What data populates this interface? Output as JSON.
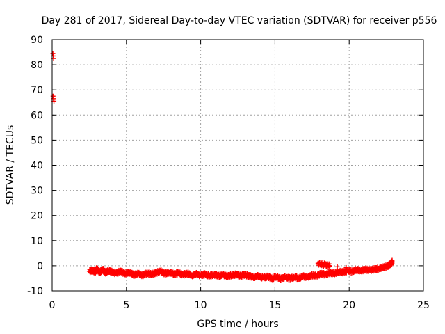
{
  "chart_data": {
    "type": "scatter",
    "title": "Day 281 of 2017, Sidereal Day-to-day VTEC variation (SDTVAR) for receiver p556",
    "xlabel": "GPS time / hours",
    "ylabel": "SDTVAR / TECUs",
    "xlim": [
      0,
      25
    ],
    "ylim": [
      -10,
      90
    ],
    "xticks": [
      0,
      5,
      10,
      15,
      20,
      25
    ],
    "yticks": [
      -10,
      0,
      10,
      20,
      30,
      40,
      50,
      60,
      70,
      80,
      90
    ],
    "grid": true,
    "marker": "+",
    "series": [
      {
        "name": "SDTVAR",
        "color": "#ff0000",
        "points": [
          [
            0.05,
            84.5
          ],
          [
            0.08,
            83.5
          ],
          [
            0.1,
            82.5
          ],
          [
            0.06,
            67.5
          ],
          [
            0.09,
            66.5
          ],
          [
            0.12,
            65.5
          ],
          [
            2.5,
            -2.2
          ],
          [
            2.7,
            -1.8
          ],
          [
            2.9,
            -2.5
          ],
          [
            3.0,
            -1.2
          ],
          [
            3.2,
            -2.6
          ],
          [
            3.4,
            -1.5
          ],
          [
            3.6,
            -2.8
          ],
          [
            3.8,
            -1.9
          ],
          [
            4.0,
            -2.4
          ],
          [
            4.3,
            -3.0
          ],
          [
            4.6,
            -2.2
          ],
          [
            4.9,
            -3.1
          ],
          [
            5.2,
            -2.6
          ],
          [
            5.5,
            -3.6
          ],
          [
            5.8,
            -3.2
          ],
          [
            6.1,
            -3.8
          ],
          [
            6.4,
            -3.0
          ],
          [
            6.7,
            -3.4
          ],
          [
            7.0,
            -2.8
          ],
          [
            7.3,
            -2.2
          ],
          [
            7.6,
            -3.2
          ],
          [
            7.9,
            -2.6
          ],
          [
            8.2,
            -3.4
          ],
          [
            8.5,
            -2.9
          ],
          [
            8.8,
            -3.6
          ],
          [
            9.1,
            -3.1
          ],
          [
            9.4,
            -3.8
          ],
          [
            9.7,
            -3.3
          ],
          [
            10.0,
            -3.9
          ],
          [
            10.3,
            -3.4
          ],
          [
            10.6,
            -4.0
          ],
          [
            10.9,
            -3.5
          ],
          [
            11.2,
            -4.1
          ],
          [
            11.5,
            -3.6
          ],
          [
            11.8,
            -4.2
          ],
          [
            12.1,
            -3.7
          ],
          [
            12.4,
            -3.5
          ],
          [
            12.7,
            -4.0
          ],
          [
            13.0,
            -3.6
          ],
          [
            13.3,
            -4.2
          ],
          [
            13.6,
            -4.5
          ],
          [
            13.9,
            -4.1
          ],
          [
            14.2,
            -4.8
          ],
          [
            14.5,
            -4.3
          ],
          [
            14.8,
            -5.0
          ],
          [
            15.1,
            -4.4
          ],
          [
            15.4,
            -5.2
          ],
          [
            15.7,
            -4.6
          ],
          [
            16.0,
            -5.0
          ],
          [
            16.3,
            -4.5
          ],
          [
            16.6,
            -4.9
          ],
          [
            16.9,
            -4.2
          ],
          [
            17.2,
            -4.6
          ],
          [
            17.5,
            -3.8
          ],
          [
            17.8,
            -4.0
          ],
          [
            18.1,
            -3.2
          ],
          [
            18.4,
            -3.5
          ],
          [
            18.7,
            -2.8
          ],
          [
            19.0,
            -3.0
          ],
          [
            19.3,
            -2.4
          ],
          [
            19.6,
            -2.6
          ],
          [
            19.9,
            -2.0
          ],
          [
            20.2,
            -2.3
          ],
          [
            20.5,
            -1.6
          ],
          [
            20.8,
            -1.9
          ],
          [
            21.1,
            -1.5
          ],
          [
            21.4,
            -1.8
          ],
          [
            21.7,
            -1.4
          ],
          [
            22.0,
            -1.1
          ],
          [
            22.3,
            -0.6
          ],
          [
            22.6,
            -0.2
          ],
          [
            22.8,
            0.8
          ],
          [
            22.9,
            1.6
          ],
          [
            17.9,
            1.0
          ],
          [
            18.3,
            0.5
          ],
          [
            18.7,
            0.0
          ],
          [
            19.2,
            -0.4
          ],
          [
            19.8,
            -0.7
          ],
          [
            20.4,
            -0.9
          ],
          [
            21.0,
            -1.0
          ],
          [
            21.6,
            -1.1
          ],
          [
            22.2,
            -0.9
          ]
        ]
      }
    ]
  }
}
